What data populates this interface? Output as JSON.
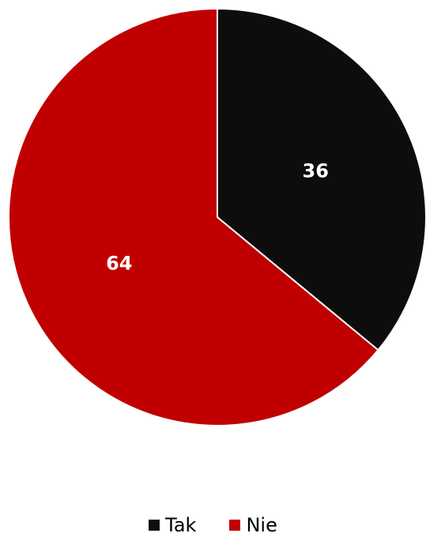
{
  "chart_data": {
    "type": "pie",
    "categories": [
      "Tak",
      "Nie"
    ],
    "values": [
      36,
      64
    ],
    "colors": [
      "#0d0d0d",
      "#c00000"
    ],
    "labels": [
      "36",
      "64"
    ],
    "label_color": "#ffffff",
    "slice_border_color": "#ffffff",
    "start": "top",
    "direction": "clockwise",
    "legend_position": "bottom"
  },
  "legend": {
    "items": [
      {
        "label": "Tak",
        "color": "#0d0d0d"
      },
      {
        "label": "Nie",
        "color": "#c00000"
      }
    ]
  }
}
